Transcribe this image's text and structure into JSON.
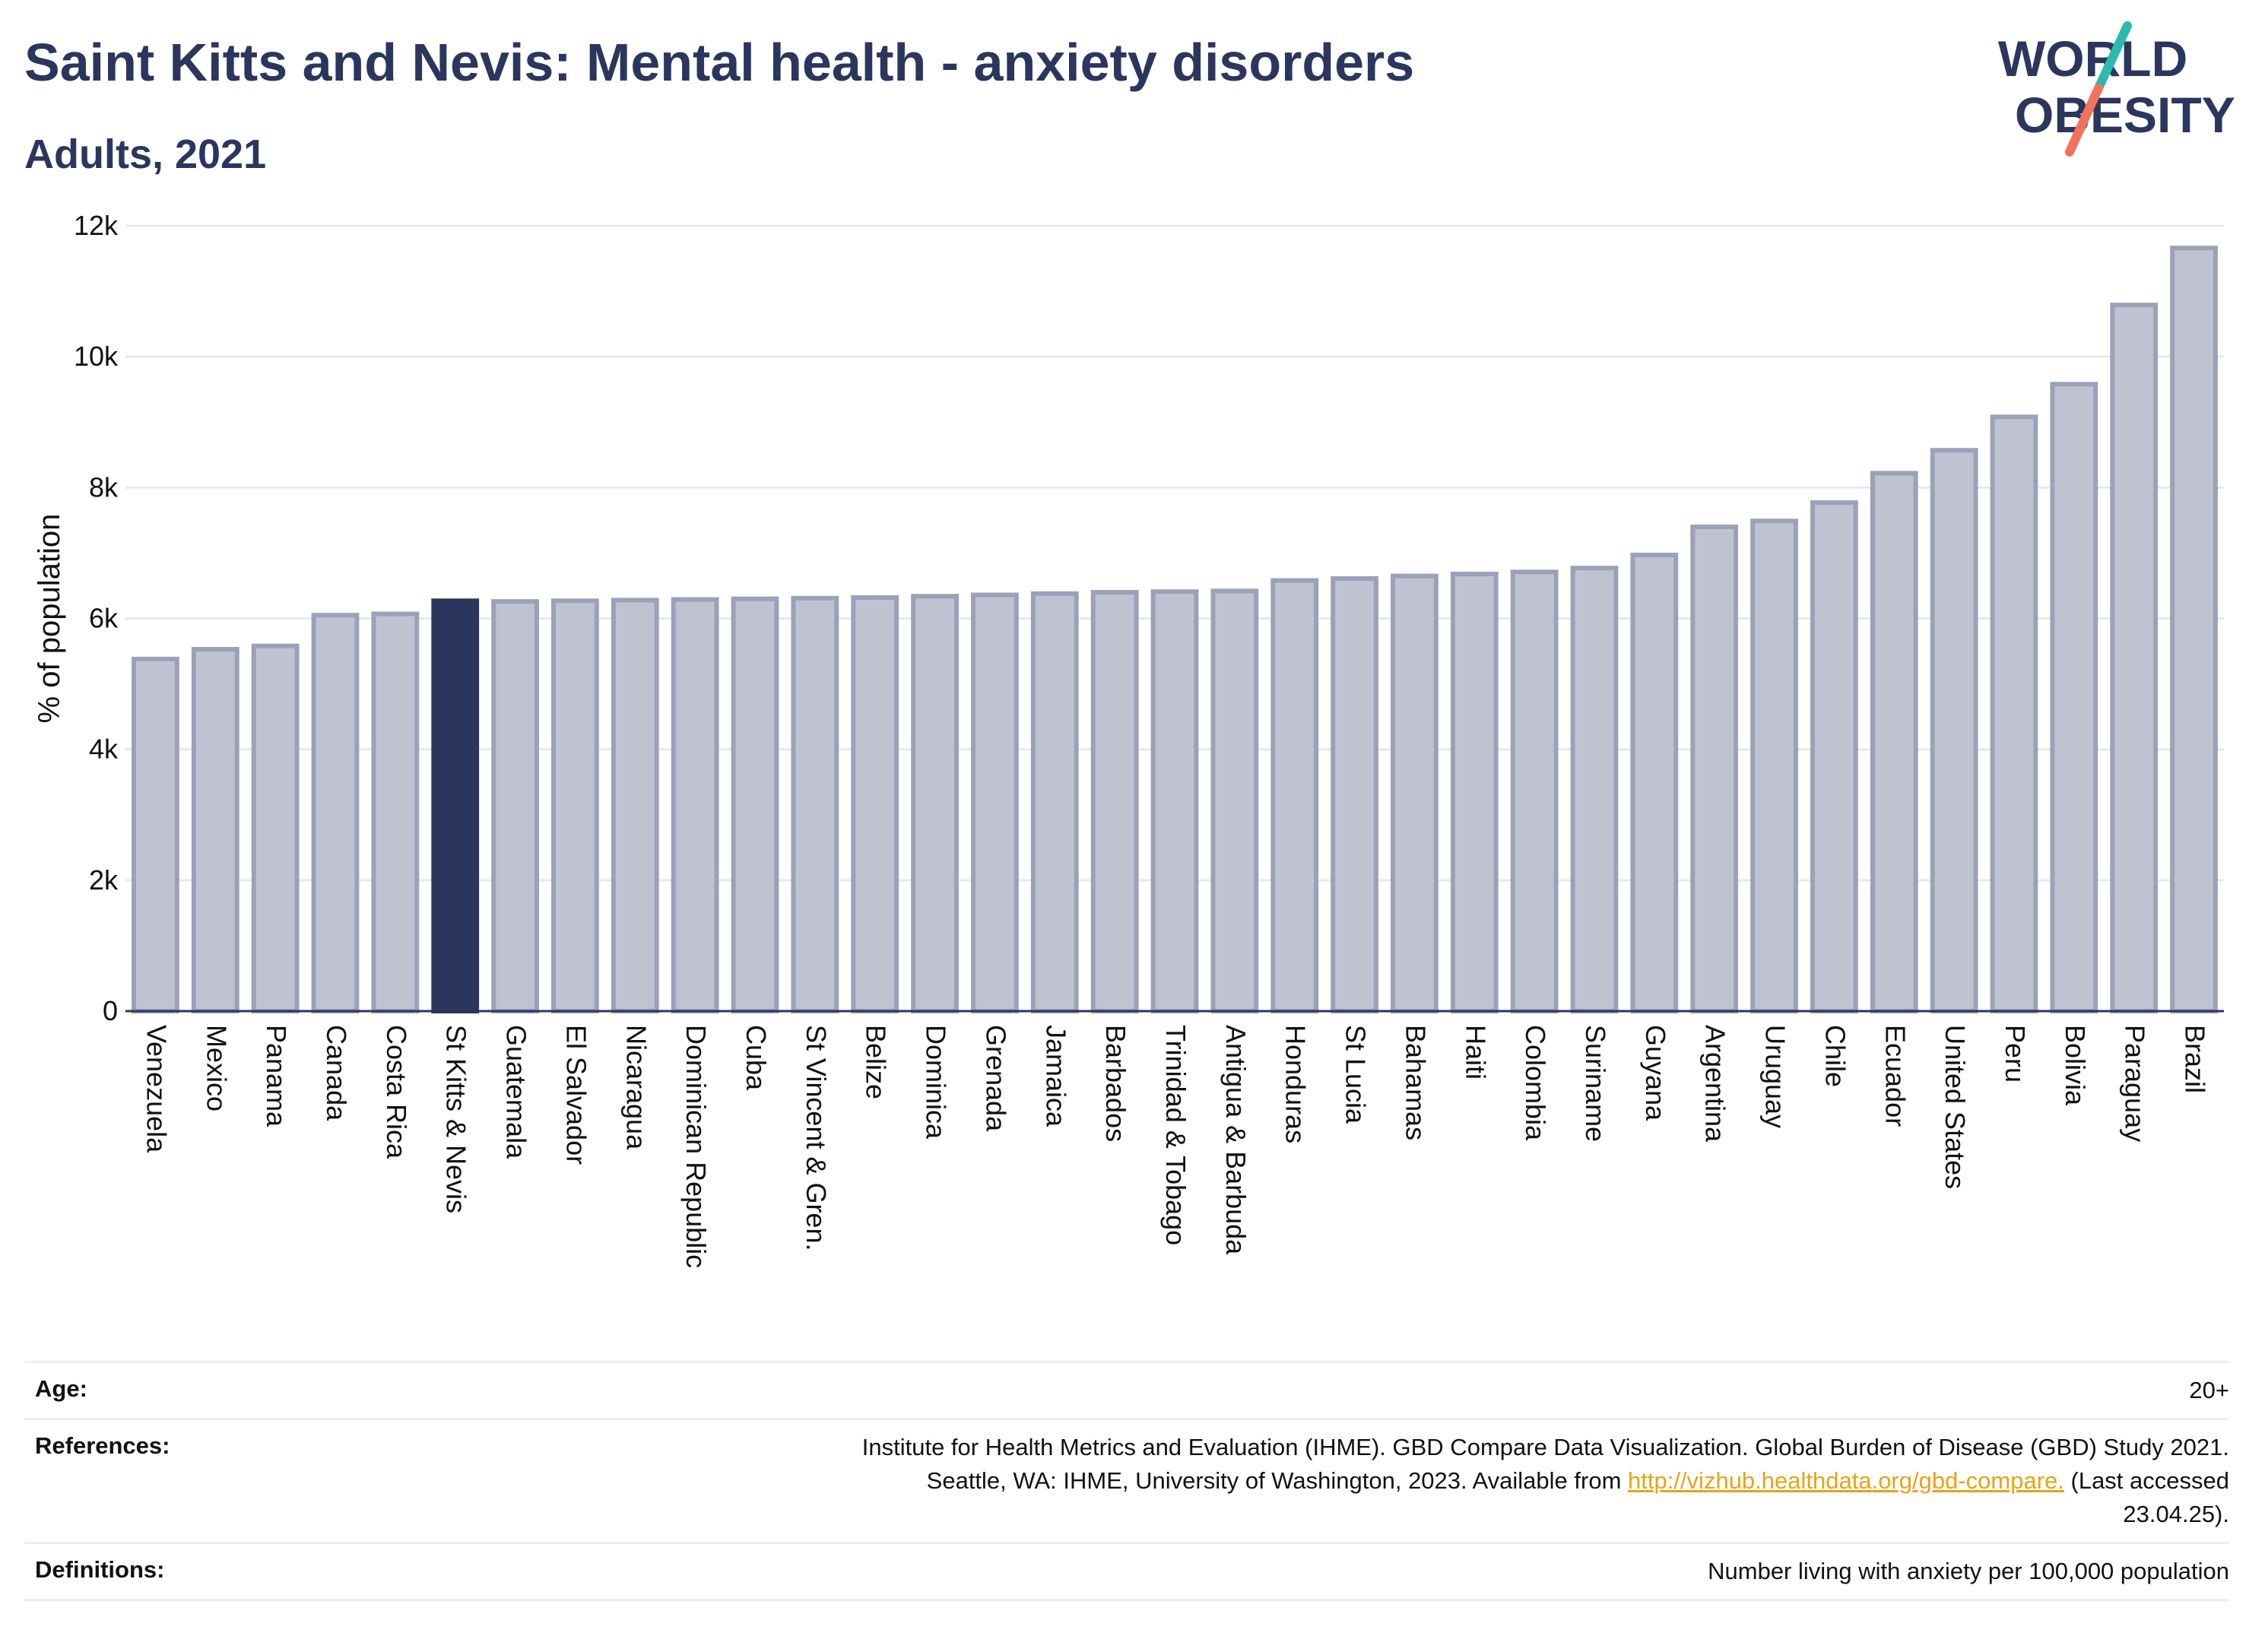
{
  "header": {
    "title": "Saint Kitts and Nevis: Mental health - anxiety disorders",
    "subtitle": "Adults, 2021"
  },
  "logo": {
    "line1": "WORLD",
    "line2": "OBESITY"
  },
  "colors": {
    "highlight_bar": "#2b365f",
    "bar_fill": "#bfc3d1",
    "bar_stroke": "#9aa1b8",
    "brand_navy": "#2b365f",
    "logo_teal": "#2bbbad",
    "logo_coral": "#f0735a",
    "link": "#e8a317"
  },
  "chart_data": {
    "type": "bar",
    "title": "Saint Kitts and Nevis: Mental health - anxiety disorders",
    "subtitle": "Adults, 2021",
    "ylabel": "% of population",
    "xlabel": "",
    "ylim": [
      0,
      12000
    ],
    "yticks": [
      0,
      2000,
      4000,
      6000,
      8000,
      10000,
      12000
    ],
    "ytick_labels": [
      "0",
      "2k",
      "4k",
      "6k",
      "8k",
      "10k",
      "12k"
    ],
    "grid": true,
    "highlight": "St Kitts & Nevis",
    "categories": [
      "Venezuela",
      "Mexico",
      "Panama",
      "Canada",
      "Costa Rica",
      "St Kitts & Nevis",
      "Guatemala",
      "El Salvador",
      "Nicaragua",
      "Dominican Republic",
      "Cuba",
      "St Vincent & Gren.",
      "Belize",
      "Dominica",
      "Grenada",
      "Jamaica",
      "Barbados",
      "Trinidad & Tobago",
      "Antigua & Barbuda",
      "Honduras",
      "St Lucia",
      "Bahamas",
      "Haiti",
      "Colombia",
      "Suriname",
      "Guyana",
      "Argentina",
      "Uruguay",
      "Chile",
      "Ecuador",
      "United States",
      "Peru",
      "Bolivia",
      "Paraguay",
      "Brazil"
    ],
    "values": [
      5380,
      5530,
      5580,
      6050,
      6070,
      6270,
      6260,
      6270,
      6280,
      6290,
      6300,
      6310,
      6320,
      6340,
      6360,
      6380,
      6400,
      6410,
      6420,
      6580,
      6610,
      6650,
      6680,
      6710,
      6770,
      6970,
      7400,
      7490,
      7770,
      8220,
      8570,
      9080,
      9580,
      10790,
      11660
    ]
  },
  "info": {
    "age_label": "Age:",
    "age_value": "20+",
    "references_label": "References:",
    "references_line1": "Institute for Health Metrics and Evaluation (IHME). GBD Compare Data Visualization. Global Burden of Disease (GBD) Study 2021.",
    "references_line2a": "Seattle, WA: IHME, University of Washington, 2023. Available from ",
    "references_link": "http://vizhub.healthdata.org/gbd-compare.",
    "references_line2b": " (Last accessed",
    "references_line3": "23.04.25).",
    "definitions_label": "Definitions:",
    "definitions_value": "Number living with anxiety per 100,000 population"
  }
}
